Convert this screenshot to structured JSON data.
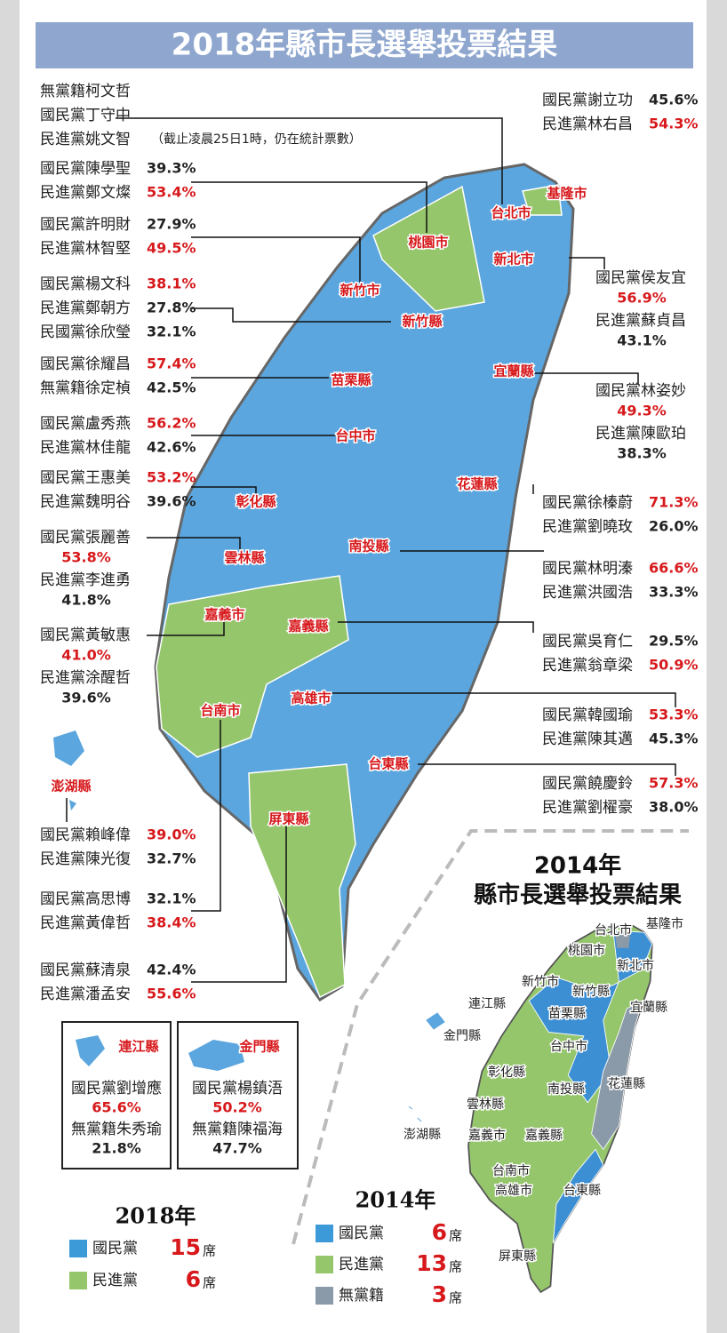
{
  "title": "2018年縣市長選舉投票結果",
  "note": "（截止凌晨25日1時，仍在統計票數）",
  "map_labels": [
    "台北市",
    "基隆市",
    "桃園市",
    "新北市",
    "新竹市",
    "新竹縣",
    "苗栗縣",
    "宜蘭縣",
    "台中市",
    "花蓮縣",
    "彰化縣",
    "雲林縣",
    "南投縣",
    "嘉義市",
    "嘉義縣",
    "台南市",
    "高雄市",
    "台東縣",
    "屏東縣",
    "澎湖縣"
  ],
  "results": [
    {
      "lines": [
        {
          "name": "無黨籍柯文哲"
        },
        {
          "name": "國民黨丁守中"
        },
        {
          "name": "民進黨姚文智"
        }
      ]
    },
    {
      "lines": [
        {
          "name": "國民黨謝立功",
          "pct": "45.6%",
          "win": false
        },
        {
          "name": "民進黨林右昌",
          "pct": "54.3%",
          "win": true
        }
      ]
    },
    {
      "lines": [
        {
          "name": "國民黨陳學聖",
          "pct": "39.3%",
          "win": false
        },
        {
          "name": "民進黨鄭文燦",
          "pct": "53.4%",
          "win": true
        }
      ]
    },
    {
      "lines": [
        {
          "name": "國民黨許明財",
          "pct": "27.9%",
          "win": false
        },
        {
          "name": "民進黨林智堅",
          "pct": "49.5%",
          "win": true
        }
      ]
    },
    {
      "lines": [
        {
          "name": "國民黨楊文科",
          "pct": "38.1%",
          "win": true
        },
        {
          "name": "民進黨鄭朝方",
          "pct": "27.8%",
          "win": false
        },
        {
          "name": "民國黨徐欣瑩",
          "pct": "32.1%",
          "win": false
        }
      ]
    },
    {
      "lines": [
        {
          "name": "國民黨侯友宜",
          "pct": "56.9%",
          "win": true
        },
        {
          "name": "民進黨蘇貞昌",
          "pct": "43.1%",
          "win": false
        }
      ]
    },
    {
      "lines": [
        {
          "name": "國民黨徐耀昌",
          "pct": "57.4%",
          "win": true
        },
        {
          "name": "無黨籍徐定楨",
          "pct": "42.5%",
          "win": false
        }
      ]
    },
    {
      "lines": [
        {
          "name": "國民黨林姿妙",
          "pct": "49.3%",
          "win": true
        },
        {
          "name": "民進黨陳歐珀",
          "pct": "38.3%",
          "win": false
        }
      ]
    },
    {
      "lines": [
        {
          "name": "國民黨盧秀燕",
          "pct": "56.2%",
          "win": true
        },
        {
          "name": "民進黨林佳龍",
          "pct": "42.6%",
          "win": false
        }
      ]
    },
    {
      "lines": [
        {
          "name": "國民黨王惠美",
          "pct": "53.2%",
          "win": true
        },
        {
          "name": "民進黨魏明谷",
          "pct": "39.6%",
          "win": false
        }
      ]
    },
    {
      "lines": [
        {
          "name": "國民黨徐榛蔚",
          "pct": "71.3%",
          "win": true
        },
        {
          "name": "民進黨劉曉玫",
          "pct": "26.0%",
          "win": false
        }
      ]
    },
    {
      "lines": [
        {
          "name": "國民黨張麗善",
          "pct": "53.8%",
          "win": true
        },
        {
          "name": "民進黨李進勇",
          "pct": "41.8%",
          "win": false
        }
      ]
    },
    {
      "lines": [
        {
          "name": "國民黨林明溱",
          "pct": "66.6%",
          "win": true
        },
        {
          "name": "民進黨洪國浩",
          "pct": "33.3%",
          "win": false
        }
      ]
    },
    {
      "lines": [
        {
          "name": "國民黨黃敏惠",
          "pct": "41.0%",
          "win": true
        },
        {
          "name": "民進黨涂醒哲",
          "pct": "39.6%",
          "win": false
        }
      ]
    },
    {
      "lines": [
        {
          "name": "國民黨吳育仁",
          "pct": "29.5%",
          "win": false
        },
        {
          "name": "民進黨翁章梁",
          "pct": "50.9%",
          "win": true
        }
      ]
    },
    {
      "lines": [
        {
          "name": "國民黨韓國瑜",
          "pct": "53.3%",
          "win": true
        },
        {
          "name": "民進黨陳其邁",
          "pct": "45.3%",
          "win": false
        }
      ]
    },
    {
      "lines": [
        {
          "name": "國民黨饒慶鈴",
          "pct": "57.3%",
          "win": true
        },
        {
          "name": "民進黨劉櫂豪",
          "pct": "38.0%",
          "win": false
        }
      ]
    },
    {
      "lines": [
        {
          "name": "國民黨賴峰偉",
          "pct": "39.0%",
          "win": true
        },
        {
          "name": "民進黨陳光復",
          "pct": "32.7%",
          "win": false
        }
      ]
    },
    {
      "lines": [
        {
          "name": "國民黨高思博",
          "pct": "32.1%",
          "win": false
        },
        {
          "name": "民進黨黃偉哲",
          "pct": "38.4%",
          "win": true
        }
      ]
    },
    {
      "lines": [
        {
          "name": "國民黨蘇清泉",
          "pct": "42.4%",
          "win": false
        },
        {
          "name": "民進黨潘孟安",
          "pct": "55.6%",
          "win": true
        }
      ]
    }
  ],
  "islands": [
    {
      "label": "連江縣",
      "lines": [
        {
          "name": "國民黨劉增應",
          "pct": "65.6%",
          "win": true
        },
        {
          "name": "無黨籍朱秀瑜",
          "pct": "21.8%",
          "win": false
        }
      ]
    },
    {
      "label": "金門縣",
      "lines": [
        {
          "name": "國民黨楊鎮浯",
          "pct": "50.2%",
          "win": true
        },
        {
          "name": "無黨籍陳福海",
          "pct": "47.7%",
          "win": false
        }
      ]
    }
  ],
  "inset": {
    "title_lines": [
      "2014年",
      "縣市長選舉投票結果"
    ],
    "labels": [
      "台北市",
      "基隆市",
      "桃園市",
      "新北市",
      "新竹市",
      "新竹縣",
      "連江縣",
      "苗栗縣",
      "宜蘭縣",
      "金門縣",
      "台中市",
      "彰化縣",
      "花蓮縣",
      "南投縣",
      "雲林縣",
      "澎湖縣",
      "嘉義市",
      "嘉義縣",
      "台南市",
      "高雄市",
      "台東縣",
      "屏東縣"
    ]
  },
  "legend_2018": {
    "title": "2018年",
    "items": [
      {
        "party": "國民黨",
        "seats": "15",
        "unit": "席",
        "color": "#3d9ad9"
      },
      {
        "party": "民進黨",
        "seats": "6",
        "unit": "席",
        "color": "#95c66c"
      }
    ]
  },
  "legend_2014": {
    "title": "2014年",
    "items": [
      {
        "party": "國民黨",
        "seats": "6",
        "unit": "席",
        "color": "#3d9ad9"
      },
      {
        "party": "民進黨",
        "seats": "13",
        "unit": "席",
        "color": "#95c66c"
      },
      {
        "party": "無黨籍",
        "seats": "3",
        "unit": "席",
        "color": "#8a9aa8"
      }
    ]
  }
}
